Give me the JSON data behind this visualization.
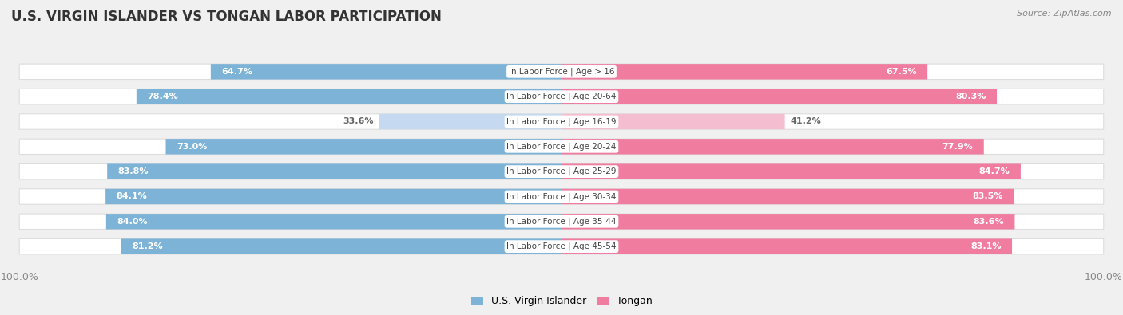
{
  "title": "U.S. VIRGIN ISLANDER VS TONGAN LABOR PARTICIPATION",
  "source": "Source: ZipAtlas.com",
  "categories": [
    "In Labor Force | Age > 16",
    "In Labor Force | Age 20-64",
    "In Labor Force | Age 16-19",
    "In Labor Force | Age 20-24",
    "In Labor Force | Age 25-29",
    "In Labor Force | Age 30-34",
    "In Labor Force | Age 35-44",
    "In Labor Force | Age 45-54"
  ],
  "usvi_values": [
    64.7,
    78.4,
    33.6,
    73.0,
    83.8,
    84.1,
    84.0,
    81.2
  ],
  "tongan_values": [
    67.5,
    80.3,
    41.2,
    77.9,
    84.7,
    83.5,
    83.6,
    83.1
  ],
  "usvi_color": "#7EB3D8",
  "usvi_color_light": "#C5DAF0",
  "tongan_color": "#F07CA0",
  "tongan_color_light": "#F5BDD0",
  "usvi_label_color": "#FFFFFF",
  "tongan_label_color": "#FFFFFF",
  "usvi_label_color_light": "#888888",
  "tongan_label_color_light": "#888888",
  "background_color": "#F0F0F0",
  "row_bg_color": "#FFFFFF",
  "row_edge_color": "#DDDDDD",
  "center_label_color": "#444444",
  "axis_label_color": "#888888",
  "max_val": 100.0,
  "light_threshold": 50.0,
  "legend_usvi": "U.S. Virgin Islander",
  "legend_tongan": "Tongan",
  "title_color": "#333333",
  "title_fontsize": 12,
  "source_fontsize": 8,
  "bar_label_fontsize": 8,
  "category_fontsize": 7.5,
  "legend_fontsize": 9,
  "axis_fontsize": 9
}
